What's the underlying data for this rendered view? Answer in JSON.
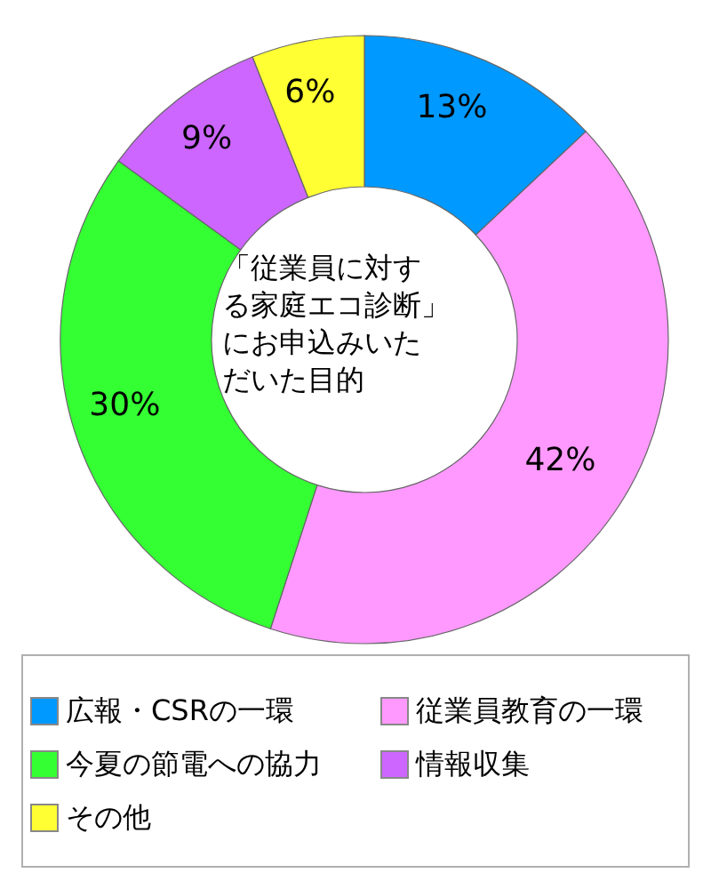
{
  "chart_data": {
    "type": "donut",
    "title": "「従業員に対する家庭エコ診断」にお申込みいただいた目的",
    "categories": [
      "広報・CSRの一環",
      "従業員教育の一環",
      "今夏の節電への協力",
      "情報収集",
      "その他"
    ],
    "values": [
      13,
      42,
      30,
      9,
      6
    ],
    "colors": [
      "#0099ff",
      "#ff99ff",
      "#33ff33",
      "#cc66ff",
      "#ffff33"
    ],
    "value_labels": [
      "13%",
      "42%",
      "30%",
      "9%",
      "6%"
    ],
    "legend": "bottom"
  }
}
